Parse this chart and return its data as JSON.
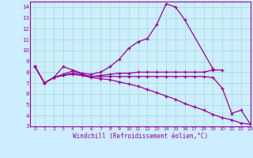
{
  "xlabel": "Windchill (Refroidissement éolien,°C)",
  "bg_color": "#cceeff",
  "line_color": "#990099",
  "grid_color": "#aaddcc",
  "xlim": [
    -0.5,
    23
  ],
  "ylim": [
    3,
    14.5
  ],
  "xticks": [
    0,
    1,
    2,
    3,
    4,
    5,
    6,
    7,
    8,
    9,
    10,
    11,
    12,
    13,
    14,
    15,
    16,
    17,
    18,
    19,
    20,
    21,
    22,
    23
  ],
  "yticks": [
    3,
    4,
    5,
    6,
    7,
    8,
    9,
    10,
    11,
    12,
    13,
    14
  ],
  "series": [
    {
      "x": [
        0,
        1,
        2,
        3,
        4,
        5,
        6,
        7,
        8,
        9,
        10,
        11,
        12,
        13,
        14,
        15,
        16,
        19
      ],
      "y": [
        8.5,
        7.0,
        7.5,
        8.5,
        8.2,
        7.9,
        7.8,
        8.0,
        8.5,
        9.2,
        10.2,
        10.8,
        11.1,
        12.4,
        14.3,
        14.0,
        12.8,
        8.3
      ]
    },
    {
      "x": [
        0,
        1,
        2,
        3,
        4,
        5,
        6,
        7,
        8,
        9,
        10,
        11,
        12,
        13,
        14,
        15,
        16,
        17,
        18,
        19,
        20
      ],
      "y": [
        8.5,
        7.0,
        7.5,
        7.8,
        8.1,
        7.8,
        7.6,
        7.7,
        7.8,
        7.9,
        7.9,
        8.0,
        8.0,
        8.0,
        8.0,
        8.0,
        8.0,
        8.0,
        8.0,
        8.2,
        8.2
      ]
    },
    {
      "x": [
        0,
        1,
        2,
        3,
        4,
        5,
        6,
        7,
        8,
        9,
        10,
        11,
        12,
        13,
        14,
        15,
        16,
        17,
        18,
        19,
        20,
        21,
        22,
        23
      ],
      "y": [
        8.5,
        7.0,
        7.5,
        7.7,
        7.8,
        7.7,
        7.5,
        7.4,
        7.3,
        7.1,
        6.9,
        6.7,
        6.4,
        6.1,
        5.8,
        5.5,
        5.1,
        4.8,
        4.5,
        4.1,
        3.8,
        3.6,
        3.3,
        3.2
      ]
    },
    {
      "x": [
        0,
        1,
        2,
        3,
        4,
        5,
        6,
        7,
        8,
        9,
        10,
        11,
        12,
        13,
        14,
        15,
        16,
        17,
        18,
        19,
        20,
        21,
        22,
        23
      ],
      "y": [
        8.5,
        7.0,
        7.5,
        7.7,
        7.9,
        7.7,
        7.6,
        7.6,
        7.6,
        7.6,
        7.6,
        7.6,
        7.6,
        7.6,
        7.6,
        7.6,
        7.6,
        7.6,
        7.6,
        7.5,
        6.5,
        4.2,
        4.5,
        3.2
      ]
    }
  ]
}
